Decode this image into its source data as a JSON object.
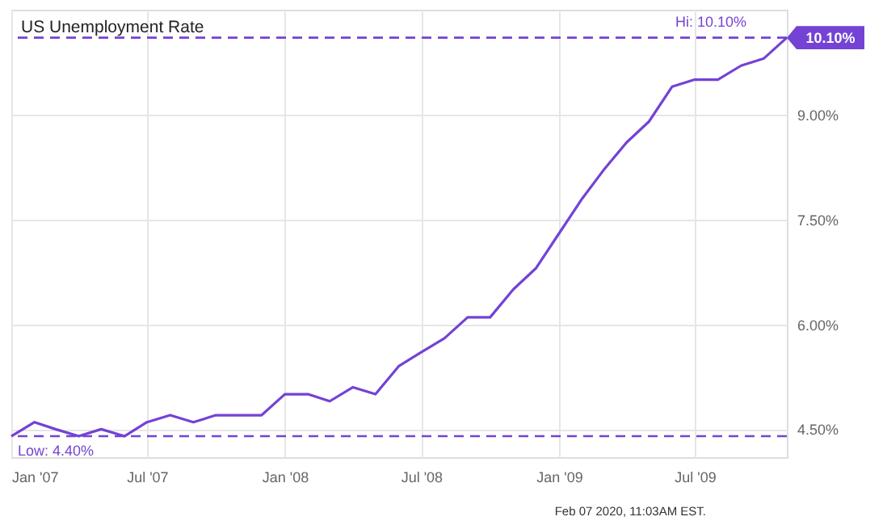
{
  "chart_data": {
    "type": "line",
    "title": "US Unemployment Rate",
    "x": [
      "2007-01",
      "2007-02",
      "2007-03",
      "2007-04",
      "2007-05",
      "2007-06",
      "2007-07",
      "2007-08",
      "2007-09",
      "2007-10",
      "2007-11",
      "2007-12",
      "2008-01",
      "2008-02",
      "2008-03",
      "2008-04",
      "2008-05",
      "2008-06",
      "2008-07",
      "2008-08",
      "2008-09",
      "2008-10",
      "2008-11",
      "2008-12",
      "2009-01",
      "2009-02",
      "2009-03",
      "2009-04",
      "2009-05",
      "2009-06",
      "2009-07",
      "2009-08",
      "2009-09",
      "2009-10",
      "2009-11"
    ],
    "series": [
      {
        "color": "#7442d4",
        "values": [
          4.4,
          4.6,
          4.5,
          4.4,
          4.5,
          4.4,
          4.6,
          4.7,
          4.6,
          4.7,
          4.7,
          4.7,
          5.0,
          5.0,
          4.9,
          5.1,
          5.0,
          5.4,
          5.6,
          5.8,
          6.1,
          6.1,
          6.5,
          6.8,
          7.3,
          7.8,
          8.2,
          8.6,
          8.9,
          9.4,
          9.5,
          9.5,
          9.7,
          9.8,
          10.1
        ]
      }
    ],
    "xlim": [
      "2007-01",
      "2009-11"
    ],
    "xticks": [
      {
        "value": "2007-01",
        "label": "Jan '07"
      },
      {
        "value": "2007-07",
        "label": "Jul '07"
      },
      {
        "value": "2008-01",
        "label": "Jan '08"
      },
      {
        "value": "2008-07",
        "label": "Jul '08"
      },
      {
        "value": "2009-01",
        "label": "Jan '09"
      },
      {
        "value": "2009-07",
        "label": "Jul '09"
      }
    ],
    "ylim": [
      4.1,
      10.5
    ],
    "yticks": [
      {
        "value": 4.5,
        "label": "4.50%"
      },
      {
        "value": 6.0,
        "label": "6.00%"
      },
      {
        "value": 7.5,
        "label": "7.50%"
      },
      {
        "value": 9.0,
        "label": "9.00%"
      }
    ],
    "ref_lines": [
      {
        "axis": "y",
        "value": 10.1,
        "label": "Hi: 10.10%",
        "color": "#7442d4",
        "line_style": "dashed"
      },
      {
        "axis": "y",
        "value": 4.4,
        "label": "Low: 4.40%",
        "color": "#7442d4",
        "line_style": "dashed"
      }
    ],
    "annotations": [
      {
        "text": "10.10%",
        "x": "2009-11",
        "y": 10.1
      },
      "Feb 07 2020, 11:03AM EST."
    ],
    "grid": true,
    "marker": "none",
    "line_style": "solid"
  }
}
